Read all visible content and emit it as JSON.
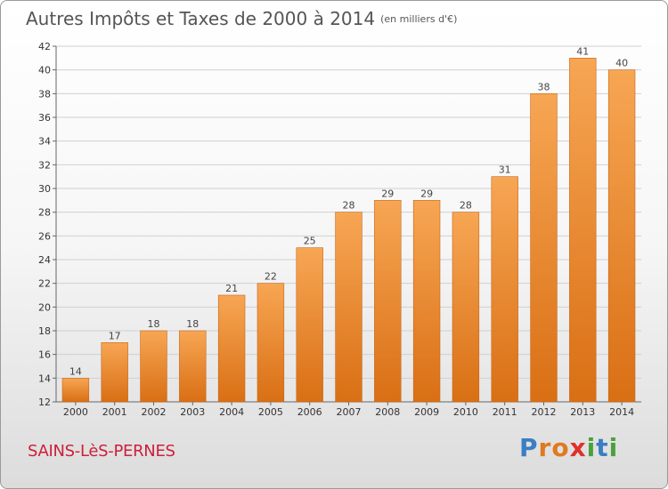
{
  "title": "Autres Impôts et Taxes de 2000 à 2014",
  "unit_note": "(en milliers d'€)",
  "commune": "SAINS-LèS-PERNES",
  "logo": {
    "text": "Proxiti",
    "letters": [
      {
        "ch": "P",
        "color": "#3a7fc4"
      },
      {
        "ch": "r",
        "color": "#e07a1f"
      },
      {
        "ch": "o",
        "color": "#e07a1f"
      },
      {
        "ch": "x",
        "color": "#e0302a"
      },
      {
        "ch": "i",
        "color": "#4aa23a"
      },
      {
        "ch": "t",
        "color": "#3a7fc4"
      },
      {
        "ch": "i",
        "color": "#4aa23a"
      }
    ]
  },
  "colors": {
    "bar_top": "#f7a654",
    "bar_bottom": "#d96f14",
    "grid": "#d0d0d0",
    "title": "#555555",
    "commune": "#cc1f3a"
  },
  "chart_data": {
    "type": "bar",
    "title": "Autres Impôts et Taxes de 2000 à 2014",
    "categories": [
      "2000",
      "2001",
      "2002",
      "2003",
      "2004",
      "2005",
      "2006",
      "2007",
      "2008",
      "2009",
      "2010",
      "2011",
      "2012",
      "2013",
      "2014"
    ],
    "values": [
      14,
      17,
      18,
      18,
      21,
      22,
      25,
      28,
      29,
      29,
      28,
      31,
      38,
      41,
      40
    ],
    "ylim": [
      12,
      42
    ],
    "yticks": [
      12,
      14,
      16,
      18,
      20,
      22,
      24,
      26,
      28,
      30,
      32,
      34,
      36,
      38,
      40,
      42
    ],
    "grid": true,
    "xlabel": "",
    "ylabel": ""
  }
}
